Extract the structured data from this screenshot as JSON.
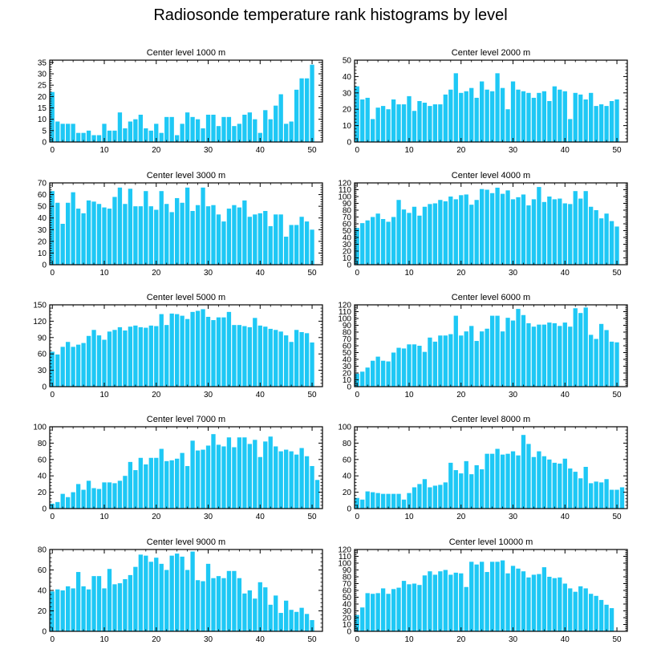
{
  "title": "Radiosonde temperature rank histograms by level",
  "colors": {
    "bar": "#1ec8f5",
    "axis": "#000000"
  },
  "chart_data": [
    {
      "type": "bar",
      "title": "Center level 1000 m",
      "xlim": [
        -0.5,
        52
      ],
      "xticks": [
        0,
        10,
        20,
        30,
        40,
        50
      ],
      "ylim": [
        0,
        36
      ],
      "yticks": [
        0,
        5,
        10,
        15,
        20,
        25,
        30,
        35
      ],
      "values": [
        22,
        9,
        8,
        8,
        8,
        4,
        4,
        5,
        3,
        3,
        8,
        5,
        5,
        13,
        6,
        9,
        10,
        12,
        6,
        5,
        8,
        4,
        11,
        11,
        3,
        8,
        13,
        11,
        10,
        6,
        12,
        12,
        7,
        11,
        11,
        7,
        8,
        12,
        13,
        10,
        4,
        14,
        10,
        16,
        21,
        8,
        9,
        23,
        28,
        28,
        34
      ]
    },
    {
      "type": "bar",
      "title": "Center level 2000 m",
      "xlim": [
        -0.5,
        52
      ],
      "xticks": [
        0,
        10,
        20,
        30,
        40,
        50
      ],
      "ylim": [
        0,
        50
      ],
      "yticks": [
        0,
        10,
        20,
        30,
        40,
        50
      ],
      "values": [
        34,
        26,
        27,
        14,
        21,
        22,
        20,
        26,
        23,
        23,
        28,
        19,
        25,
        24,
        22,
        23,
        23,
        29,
        32,
        42,
        30,
        31,
        33,
        27,
        37,
        32,
        31,
        42,
        33,
        20,
        37,
        32,
        31,
        30,
        27,
        30,
        31,
        25,
        34,
        32,
        31,
        14,
        30,
        29,
        26,
        30,
        22,
        23,
        22,
        25,
        26
      ]
    },
    {
      "type": "bar",
      "title": "Center level 3000 m",
      "xlim": [
        -0.5,
        52
      ],
      "xticks": [
        0,
        10,
        20,
        30,
        40,
        50
      ],
      "ylim": [
        0,
        70
      ],
      "yticks": [
        0,
        10,
        20,
        30,
        40,
        50,
        60,
        70
      ],
      "values": [
        63,
        53,
        35,
        53,
        62,
        48,
        44,
        55,
        54,
        52,
        49,
        48,
        58,
        66,
        52,
        65,
        50,
        50,
        63,
        50,
        47,
        63,
        52,
        45,
        57,
        53,
        66,
        46,
        51,
        66,
        50,
        51,
        43,
        37,
        48,
        51,
        49,
        55,
        41,
        43,
        44,
        46,
        33,
        43,
        43,
        24,
        34,
        34,
        41,
        37,
        30
      ]
    },
    {
      "type": "bar",
      "title": "Center level 4000 m",
      "xlim": [
        -0.5,
        52
      ],
      "xticks": [
        0,
        10,
        20,
        30,
        40,
        50
      ],
      "ylim": [
        0,
        120
      ],
      "yticks": [
        0,
        10,
        20,
        30,
        40,
        50,
        60,
        70,
        80,
        90,
        100,
        110,
        120
      ],
      "values": [
        54,
        61,
        65,
        70,
        75,
        67,
        63,
        70,
        95,
        81,
        76,
        85,
        72,
        85,
        89,
        90,
        95,
        93,
        100,
        96,
        102,
        103,
        88,
        95,
        111,
        110,
        105,
        113,
        104,
        109,
        96,
        99,
        103,
        87,
        96,
        114,
        92,
        100,
        96,
        97,
        90,
        89,
        108,
        97,
        108,
        85,
        80,
        68,
        75,
        64,
        56
      ]
    },
    {
      "type": "bar",
      "title": "Center level 5000 m",
      "xlim": [
        -0.5,
        52
      ],
      "xticks": [
        0,
        10,
        20,
        30,
        40,
        50
      ],
      "ylim": [
        0,
        150
      ],
      "yticks": [
        0,
        30,
        60,
        90,
        120,
        150
      ],
      "values": [
        64,
        59,
        73,
        82,
        73,
        77,
        80,
        93,
        104,
        94,
        86,
        101,
        104,
        109,
        103,
        110,
        112,
        109,
        108,
        112,
        111,
        133,
        113,
        134,
        133,
        130,
        124,
        137,
        139,
        142,
        128,
        122,
        127,
        127,
        137,
        113,
        113,
        111,
        109,
        126,
        112,
        110,
        106,
        104,
        101,
        94,
        82,
        104,
        100,
        98,
        81
      ]
    },
    {
      "type": "bar",
      "title": "Center level 6000 m",
      "xlim": [
        -0.5,
        52
      ],
      "xticks": [
        0,
        10,
        20,
        30,
        40,
        50
      ],
      "ylim": [
        0,
        120
      ],
      "yticks": [
        0,
        10,
        20,
        30,
        40,
        50,
        60,
        70,
        80,
        90,
        100,
        110,
        120
      ],
      "values": [
        19,
        22,
        28,
        38,
        44,
        38,
        37,
        50,
        57,
        56,
        62,
        62,
        60,
        51,
        72,
        66,
        75,
        75,
        77,
        104,
        75,
        81,
        89,
        67,
        81,
        85,
        104,
        104,
        81,
        101,
        97,
        114,
        105,
        93,
        88,
        91,
        91,
        94,
        93,
        89,
        94,
        88,
        115,
        108,
        116,
        76,
        70,
        92,
        83,
        66,
        65
      ]
    },
    {
      "type": "bar",
      "title": "Center level 7000 m",
      "xlim": [
        -0.5,
        52
      ],
      "xticks": [
        0,
        10,
        20,
        30,
        40,
        50
      ],
      "ylim": [
        0,
        100
      ],
      "yticks": [
        0,
        20,
        40,
        60,
        80,
        100
      ],
      "values": [
        6,
        8,
        18,
        14,
        20,
        30,
        23,
        34,
        25,
        24,
        32,
        32,
        31,
        34,
        40,
        57,
        47,
        62,
        54,
        62,
        62,
        73,
        58,
        59,
        61,
        68,
        52,
        83,
        71,
        72,
        77,
        91,
        78,
        76,
        87,
        75,
        87,
        87,
        79,
        84,
        63,
        82,
        88,
        76,
        70,
        72,
        70,
        66,
        74,
        64,
        52,
        35
      ]
    },
    {
      "type": "bar",
      "title": "Center level 8000 m",
      "xlim": [
        -0.5,
        52
      ],
      "xticks": [
        0,
        10,
        20,
        30,
        40,
        50
      ],
      "ylim": [
        0,
        100
      ],
      "yticks": [
        0,
        20,
        40,
        60,
        80,
        100
      ],
      "values": [
        13,
        11,
        21,
        20,
        19,
        18,
        18,
        18,
        18,
        11,
        19,
        26,
        30,
        36,
        26,
        28,
        29,
        32,
        56,
        47,
        43,
        58,
        42,
        53,
        48,
        67,
        67,
        73,
        66,
        67,
        70,
        65,
        90,
        79,
        63,
        70,
        64,
        60,
        56,
        55,
        61,
        49,
        45,
        37,
        51,
        31,
        33,
        32,
        36,
        23,
        23,
        26
      ]
    },
    {
      "type": "bar",
      "title": "Center level 9000 m",
      "xlim": [
        -0.5,
        52
      ],
      "xticks": [
        0,
        10,
        20,
        30,
        40,
        50
      ],
      "ylim": [
        0,
        80
      ],
      "yticks": [
        0,
        20,
        40,
        60,
        80
      ],
      "values": [
        39,
        41,
        40,
        44,
        42,
        58,
        44,
        41,
        54,
        54,
        42,
        61,
        46,
        47,
        51,
        55,
        63,
        75,
        74,
        68,
        72,
        66,
        60,
        74,
        76,
        73,
        60,
        78,
        50,
        49,
        66,
        52,
        54,
        52,
        59,
        59,
        52,
        37,
        40,
        32,
        48,
        43,
        26,
        35,
        18,
        30,
        21,
        19,
        23,
        17,
        11
      ]
    },
    {
      "type": "bar",
      "title": "Center level 10000 m",
      "xlim": [
        -0.5,
        52
      ],
      "xticks": [
        0,
        10,
        20,
        30,
        40,
        50
      ],
      "ylim": [
        0,
        120
      ],
      "yticks": [
        0,
        10,
        20,
        30,
        40,
        50,
        60,
        70,
        80,
        90,
        100,
        110,
        120
      ],
      "values": [
        24,
        35,
        56,
        55,
        56,
        63,
        55,
        62,
        64,
        74,
        69,
        70,
        68,
        82,
        88,
        83,
        88,
        90,
        83,
        86,
        85,
        65,
        102,
        98,
        102,
        87,
        102,
        102,
        104,
        85,
        96,
        92,
        88,
        79,
        83,
        84,
        94,
        80,
        78,
        79,
        70,
        63,
        58,
        66,
        63,
        55,
        52,
        46,
        39,
        34
      ]
    }
  ]
}
